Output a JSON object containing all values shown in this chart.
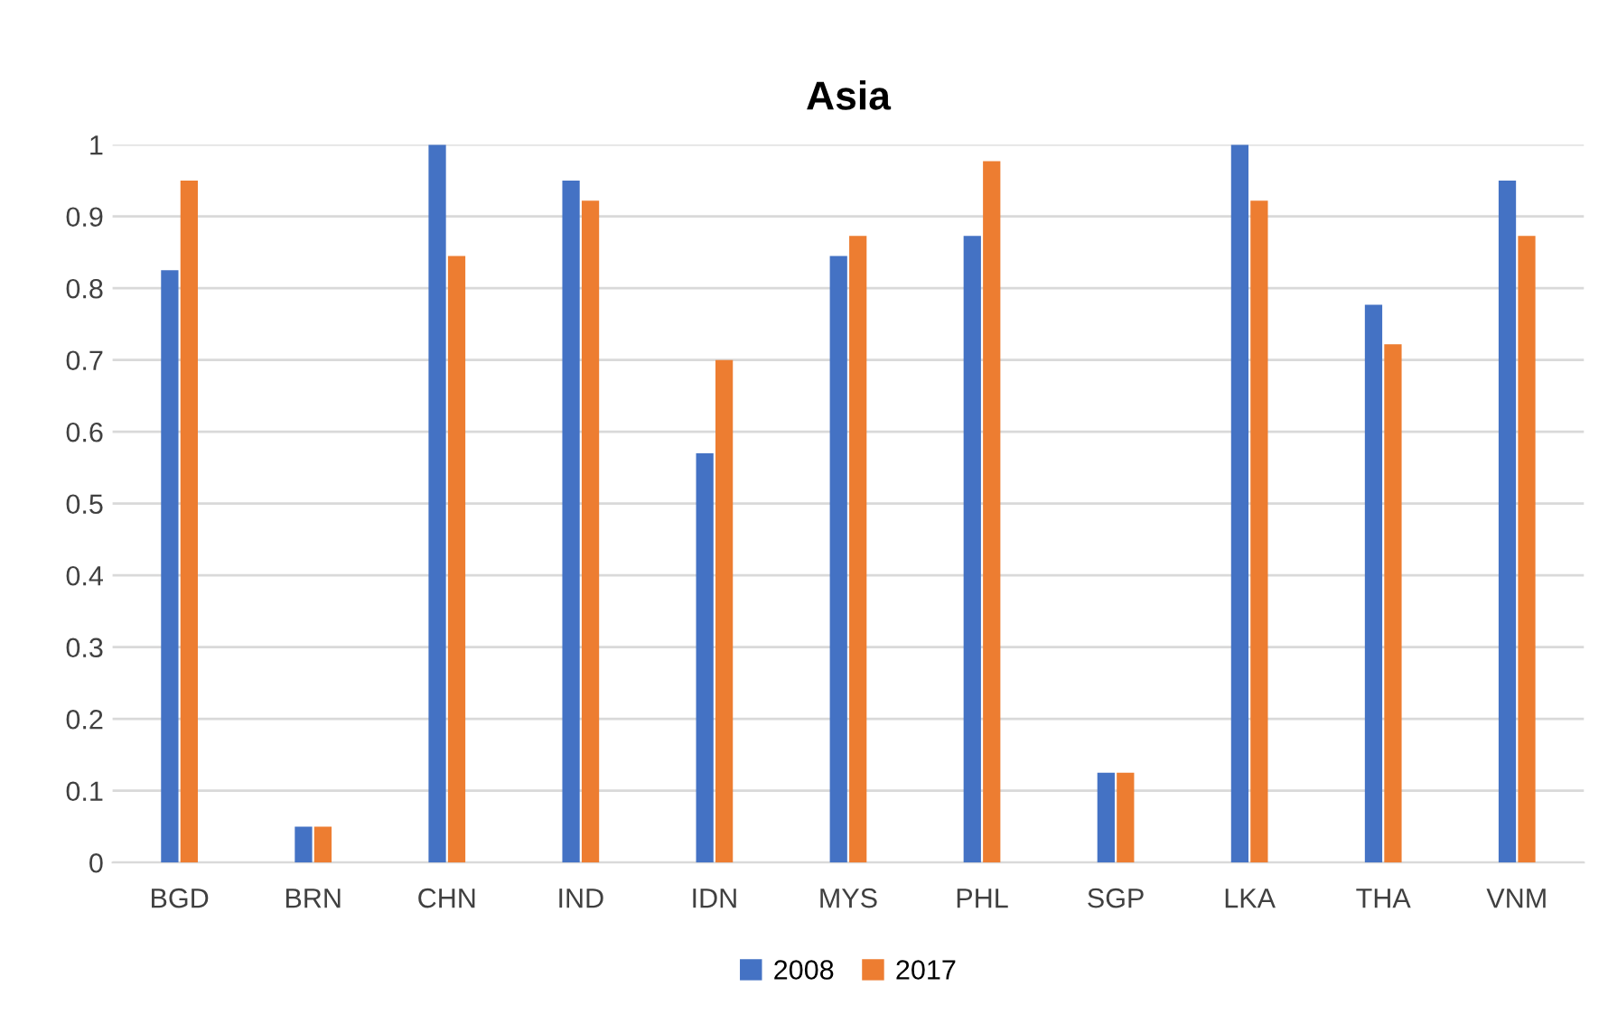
{
  "chart_data": {
    "type": "bar",
    "title": "Asia",
    "categories": [
      "BGD",
      "BRN",
      "CHN",
      "IND",
      "IDN",
      "MYS",
      "PHL",
      "SGP",
      "LKA",
      "THA",
      "VNM"
    ],
    "series": [
      {
        "name": "2008",
        "color": "#4472c4",
        "values": [
          0.825,
          0.05,
          1,
          0.95,
          0.57,
          0.845,
          0.873,
          0.125,
          1,
          0.777,
          0.95
        ]
      },
      {
        "name": "2017",
        "color": "#ed7d31",
        "values": [
          0.95,
          0.05,
          0.845,
          0.922,
          0.7,
          0.873,
          0.977,
          0.125,
          0.922,
          0.722,
          0.873
        ]
      }
    ],
    "ylim": [
      0,
      1
    ],
    "yticks": [
      0,
      0.1,
      0.2,
      0.3,
      0.4,
      0.5,
      0.6,
      0.7,
      0.8,
      0.9,
      1
    ],
    "grid": "y",
    "legend": "bottom"
  }
}
